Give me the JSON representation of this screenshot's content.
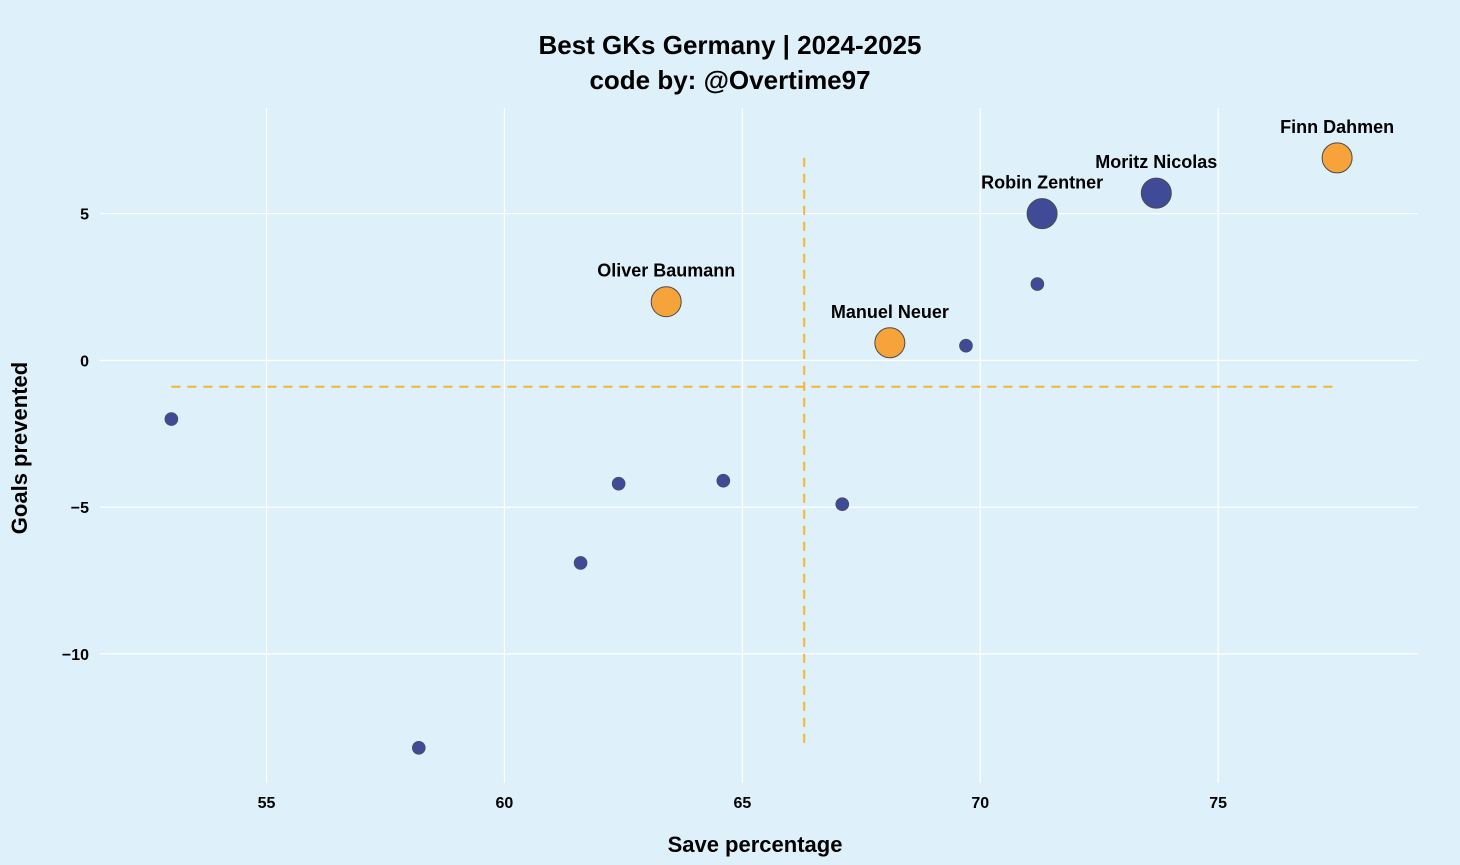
{
  "chart_data": {
    "type": "scatter",
    "title": "Best GKs Germany | 2024-2025",
    "subtitle": "code by: @Overtime97",
    "xlabel": "Save percentage",
    "ylabel": "Goals prevented",
    "xlim": [
      51.5,
      79.2
    ],
    "ylim": [
      -14.4,
      8.6
    ],
    "x_ticks": [
      55,
      60,
      65,
      70,
      75
    ],
    "y_ticks": [
      5,
      0,
      -5,
      -10
    ],
    "grid": true,
    "colors": {
      "background": "#def0f9",
      "highlight": "#f5a33a",
      "default": "#3f4b96",
      "reference": "#f5b52e"
    },
    "reference_lines": {
      "x": 66.3,
      "y": -0.9,
      "x_span": [
        53.0,
        77.5
      ],
      "y_span": [
        -13.2,
        6.9
      ]
    },
    "points": [
      {
        "x": 53.0,
        "y": -2.0,
        "label": "",
        "size": "small",
        "group": "default"
      },
      {
        "x": 58.2,
        "y": -13.2,
        "label": "",
        "size": "small",
        "group": "default"
      },
      {
        "x": 61.6,
        "y": -6.9,
        "label": "",
        "size": "small",
        "group": "default"
      },
      {
        "x": 62.4,
        "y": -4.2,
        "label": "",
        "size": "small",
        "group": "default"
      },
      {
        "x": 64.6,
        "y": -4.1,
        "label": "",
        "size": "small",
        "group": "default"
      },
      {
        "x": 67.1,
        "y": -4.9,
        "label": "",
        "size": "small",
        "group": "default"
      },
      {
        "x": 69.7,
        "y": 0.5,
        "label": "",
        "size": "small",
        "group": "default"
      },
      {
        "x": 71.2,
        "y": 2.6,
        "label": "",
        "size": "small",
        "group": "default"
      },
      {
        "x": 63.4,
        "y": 2.0,
        "label": "Oliver Baumann",
        "size": "large",
        "group": "highlight"
      },
      {
        "x": 68.1,
        "y": 0.6,
        "label": "Manuel Neuer",
        "size": "large",
        "group": "highlight"
      },
      {
        "x": 71.3,
        "y": 5.0,
        "label": "Robin Zentner",
        "size": "large",
        "group": "default"
      },
      {
        "x": 73.7,
        "y": 5.7,
        "label": "Moritz Nicolas",
        "size": "large",
        "group": "default"
      },
      {
        "x": 77.5,
        "y": 6.9,
        "label": "Finn Dahmen",
        "size": "large",
        "group": "highlight"
      }
    ]
  }
}
